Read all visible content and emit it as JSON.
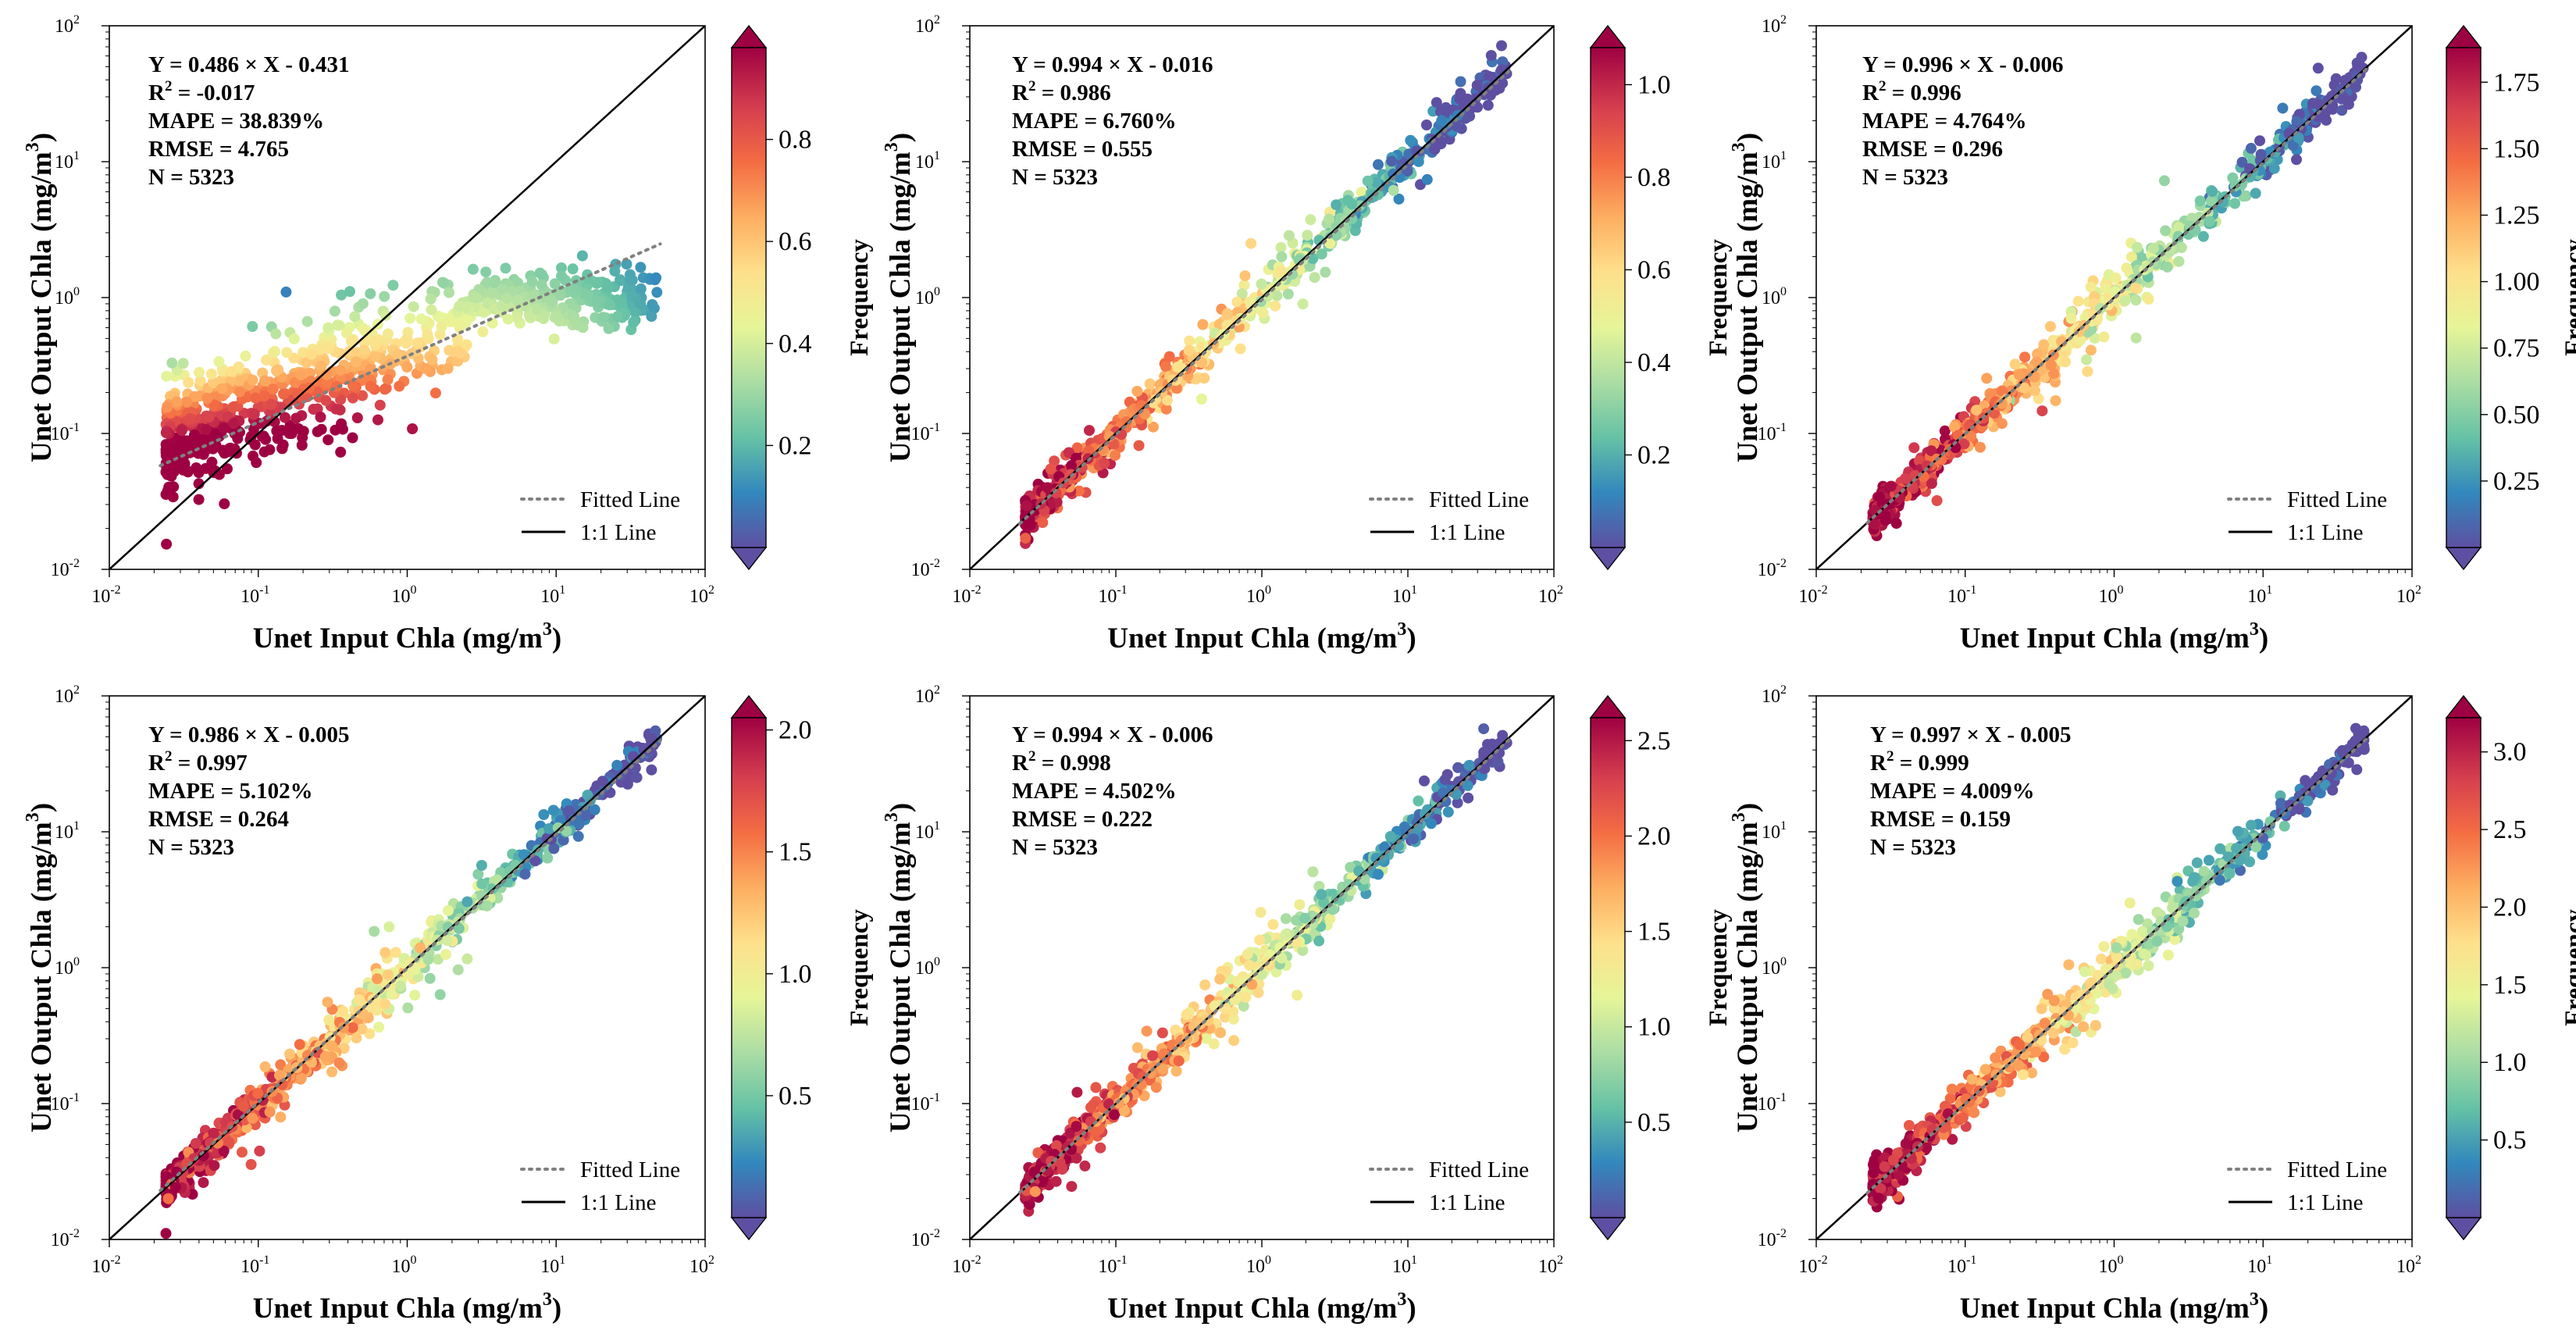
{
  "figure": {
    "rows": 2,
    "cols": 3
  },
  "colors": {
    "fitted_line": "#808080",
    "one_to_one": "#000000",
    "colormap": [
      "#5e4fa2",
      "#3288bd",
      "#66c2a5",
      "#abdda4",
      "#e6f598",
      "#fee08b",
      "#fdae61",
      "#f46d43",
      "#d53e4f",
      "#9e0142"
    ]
  },
  "chart_data": [
    {
      "type": "scatter",
      "xlabel": "Unet Input Chla (mg/m",
      "ylabel": "Unet Output Chla (mg/m",
      "unit_exp": "3",
      "xscale": "log",
      "yscale": "log",
      "xlim": [
        0.01,
        100
      ],
      "ylim": [
        0.01,
        100
      ],
      "xticks": [
        "10",
        "10",
        "10",
        "10",
        "10"
      ],
      "xtick_exps": [
        "-2",
        "-1",
        "0",
        "1",
        "2"
      ],
      "yticks": [
        "10",
        "10",
        "10",
        "10",
        "10"
      ],
      "ytick_exps": [
        "-2",
        "-1",
        "0",
        "1",
        "2"
      ],
      "stats": {
        "equation": "Y = 0.486 × X - 0.431",
        "r2_prefix": "R",
        "r2_sup": "2",
        "r2_suffix": " = -0.017",
        "mape": "MAPE = 38.839%",
        "rmse": "RMSE = 4.765",
        "n": "N = 5323"
      },
      "fit": {
        "slope": 0.486,
        "intercept": -0.431
      },
      "legend": {
        "fitted": "Fitted Line",
        "one_to_one": "1:1 Line",
        "position": "lower-right"
      },
      "colorbar": {
        "label": "Frequency",
        "min": 0,
        "max": 0.98,
        "ticks": [
          0.2,
          0.4,
          0.6,
          0.8
        ],
        "tick_labels": [
          "0.2",
          "0.4",
          "0.6",
          "0.8"
        ]
      }
    },
    {
      "type": "scatter",
      "xlabel": "Unet Input Chla (mg/m",
      "ylabel": "Unet Output Chla (mg/m",
      "unit_exp": "3",
      "xscale": "log",
      "yscale": "log",
      "xlim": [
        0.01,
        100
      ],
      "ylim": [
        0.01,
        100
      ],
      "xticks": [
        "10",
        "10",
        "10",
        "10",
        "10"
      ],
      "xtick_exps": [
        "-2",
        "-1",
        "0",
        "1",
        "2"
      ],
      "yticks": [
        "10",
        "10",
        "10",
        "10",
        "10"
      ],
      "ytick_exps": [
        "-2",
        "-1",
        "0",
        "1",
        "2"
      ],
      "stats": {
        "equation": "Y = 0.994 × X - 0.016",
        "r2_prefix": "R",
        "r2_sup": "2",
        "r2_suffix": " = 0.986",
        "mape": "MAPE = 6.760%",
        "rmse": "RMSE = 0.555",
        "n": "N = 5323"
      },
      "fit": {
        "slope": 0.994,
        "intercept": -0.016
      },
      "legend": {
        "fitted": "Fitted Line",
        "one_to_one": "1:1 Line",
        "position": "lower-right"
      },
      "colorbar": {
        "label": "Frequency",
        "min": 0,
        "max": 1.08,
        "ticks": [
          0.2,
          0.4,
          0.6,
          0.8,
          1.0
        ],
        "tick_labels": [
          "0.2",
          "0.4",
          "0.6",
          "0.8",
          "1.0"
        ]
      }
    },
    {
      "type": "scatter",
      "xlabel": "Unet Input Chla (mg/m",
      "ylabel": "Unet Output Chla (mg/m",
      "unit_exp": "3",
      "xscale": "log",
      "yscale": "log",
      "xlim": [
        0.01,
        100
      ],
      "ylim": [
        0.01,
        100
      ],
      "xticks": [
        "10",
        "10",
        "10",
        "10",
        "10"
      ],
      "xtick_exps": [
        "-2",
        "-1",
        "0",
        "1",
        "2"
      ],
      "yticks": [
        "10",
        "10",
        "10",
        "10",
        "10"
      ],
      "ytick_exps": [
        "-2",
        "-1",
        "0",
        "1",
        "2"
      ],
      "stats": {
        "equation": "Y = 0.996 × X - 0.006",
        "r2_prefix": "R",
        "r2_sup": "2",
        "r2_suffix": " = 0.996",
        "mape": "MAPE = 4.764%",
        "rmse": "RMSE = 0.296",
        "n": "N = 5323"
      },
      "fit": {
        "slope": 0.996,
        "intercept": -0.006
      },
      "legend": {
        "fitted": "Fitted Line",
        "one_to_one": "1:1 Line",
        "position": "lower-right"
      },
      "colorbar": {
        "label": "Frequency",
        "min": 0,
        "max": 1.88,
        "ticks": [
          0.25,
          0.5,
          0.75,
          1.0,
          1.25,
          1.5,
          1.75
        ],
        "tick_labels": [
          "0.25",
          "0.50",
          "0.75",
          "1.00",
          "1.25",
          "1.50",
          "1.75"
        ]
      }
    },
    {
      "type": "scatter",
      "xlabel": "Unet Input Chla (mg/m",
      "ylabel": "Unet Output Chla (mg/m",
      "unit_exp": "3",
      "xscale": "log",
      "yscale": "log",
      "xlim": [
        0.01,
        100
      ],
      "ylim": [
        0.01,
        100
      ],
      "xticks": [
        "10",
        "10",
        "10",
        "10",
        "10"
      ],
      "xtick_exps": [
        "-2",
        "-1",
        "0",
        "1",
        "2"
      ],
      "yticks": [
        "10",
        "10",
        "10",
        "10",
        "10"
      ],
      "ytick_exps": [
        "-2",
        "-1",
        "0",
        "1",
        "2"
      ],
      "stats": {
        "equation": "Y = 0.986 × X - 0.005",
        "r2_prefix": "R",
        "r2_sup": "2",
        "r2_suffix": " = 0.997",
        "mape": "MAPE = 5.102%",
        "rmse": "RMSE = 0.264",
        "n": "N = 5323"
      },
      "fit": {
        "slope": 0.986,
        "intercept": -0.005
      },
      "legend": {
        "fitted": "Fitted Line",
        "one_to_one": "1:1 Line",
        "position": "lower-right"
      },
      "colorbar": {
        "label": "Frequency",
        "min": 0,
        "max": 2.05,
        "ticks": [
          0.5,
          1.0,
          1.5,
          2.0
        ],
        "tick_labels": [
          "0.5",
          "1.0",
          "1.5",
          "2.0"
        ]
      }
    },
    {
      "type": "scatter",
      "xlabel": "Unet Input Chla (mg/m",
      "ylabel": "Unet Output Chla (mg/m",
      "unit_exp": "3",
      "xscale": "log",
      "yscale": "log",
      "xlim": [
        0.01,
        100
      ],
      "ylim": [
        0.01,
        100
      ],
      "xticks": [
        "10",
        "10",
        "10",
        "10",
        "10"
      ],
      "xtick_exps": [
        "-2",
        "-1",
        "0",
        "1",
        "2"
      ],
      "yticks": [
        "10",
        "10",
        "10",
        "10",
        "10"
      ],
      "ytick_exps": [
        "-2",
        "-1",
        "0",
        "1",
        "2"
      ],
      "stats": {
        "equation": "Y = 0.994 × X - 0.006",
        "r2_prefix": "R",
        "r2_sup": "2",
        "r2_suffix": " = 0.998",
        "mape": "MAPE = 4.502%",
        "rmse": "RMSE = 0.222",
        "n": "N = 5323"
      },
      "fit": {
        "slope": 0.994,
        "intercept": -0.006
      },
      "legend": {
        "fitted": "Fitted Line",
        "one_to_one": "1:1 Line",
        "position": "lower-right"
      },
      "colorbar": {
        "label": "Frequency",
        "min": 0,
        "max": 2.62,
        "ticks": [
          0.5,
          1.0,
          1.5,
          2.0,
          2.5
        ],
        "tick_labels": [
          "0.5",
          "1.0",
          "1.5",
          "2.0",
          "2.5"
        ]
      }
    },
    {
      "type": "scatter",
      "xlabel": "Unet Input Chla (mg/m",
      "ylabel": "Unet Output Chla (mg/m",
      "unit_exp": "3",
      "xscale": "log",
      "yscale": "log",
      "xlim": [
        0.01,
        100
      ],
      "ylim": [
        0.01,
        100
      ],
      "xticks": [
        "10",
        "10",
        "10",
        "10",
        "10"
      ],
      "xtick_exps": [
        "-2",
        "-1",
        "0",
        "1",
        "2"
      ],
      "yticks": [
        "10",
        "10",
        "10",
        "10",
        "10"
      ],
      "ytick_exps": [
        "-2",
        "-1",
        "0",
        "1",
        "2"
      ],
      "stats": {
        "equation": "Y = 0.997 × X - 0.005",
        "r2_prefix": "R",
        "r2_sup": "2",
        "r2_suffix": " = 0.999",
        "mape": "MAPE = 4.009%",
        "rmse": "RMSE = 0.159",
        "n": "N = 5323"
      },
      "fit": {
        "slope": 0.997,
        "intercept": -0.005
      },
      "legend": {
        "fitted": "Fitted Line",
        "one_to_one": "1:1 Line",
        "position": "lower-right"
      },
      "colorbar": {
        "label": "Frequency",
        "min": 0,
        "max": 3.22,
        "ticks": [
          0.5,
          1.0,
          1.5,
          2.0,
          2.5,
          3.0
        ],
        "tick_labels": [
          "0.5",
          "1.0",
          "1.5",
          "2.0",
          "2.5",
          "3.0"
        ]
      }
    }
  ]
}
